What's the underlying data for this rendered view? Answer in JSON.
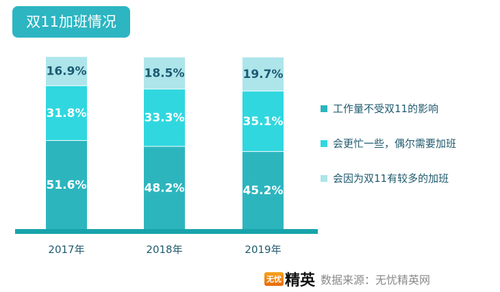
{
  "title": "双11加班情况",
  "chart_data": {
    "type": "bar",
    "stacked": true,
    "categories": [
      "2017年",
      "2018年",
      "2019年"
    ],
    "series": [
      {
        "name": "工作量不受双11的影响",
        "values": [
          51.6,
          48.2,
          45.2
        ],
        "color": "#2db5be",
        "label_color": "#ffffff"
      },
      {
        "name": "会更忙一些，偶尔需要加班",
        "values": [
          31.8,
          33.3,
          35.1
        ],
        "color": "#30d7df",
        "label_color": "#ffffff"
      },
      {
        "name": "会因为双11有较多的加班",
        "values": [
          16.9,
          18.5,
          19.7
        ],
        "color": "#ade5eb",
        "label_color": "#1c5a72"
      }
    ],
    "ylim": [
      0,
      100
    ],
    "grid": false,
    "legend": "right",
    "axis_color": "#17a3ab"
  },
  "source": {
    "logo_small": "无忧",
    "logo_big": "精英",
    "text": "数据来源：无忧精英网"
  }
}
